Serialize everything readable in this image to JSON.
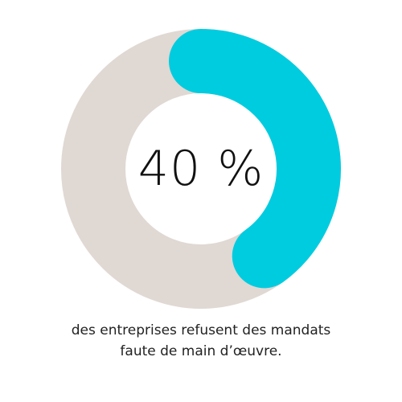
{
  "chart_data": {
    "type": "pie",
    "slices": [
      {
        "label": "",
        "value": 40,
        "color": "#00CCE0"
      },
      {
        "label": "",
        "value": 60,
        "color": "#E0D8D3"
      }
    ],
    "center_label": "40 %",
    "caption_lines": [
      "des entreprises refusent des mandats",
      "faute de main d’œuvre."
    ]
  }
}
